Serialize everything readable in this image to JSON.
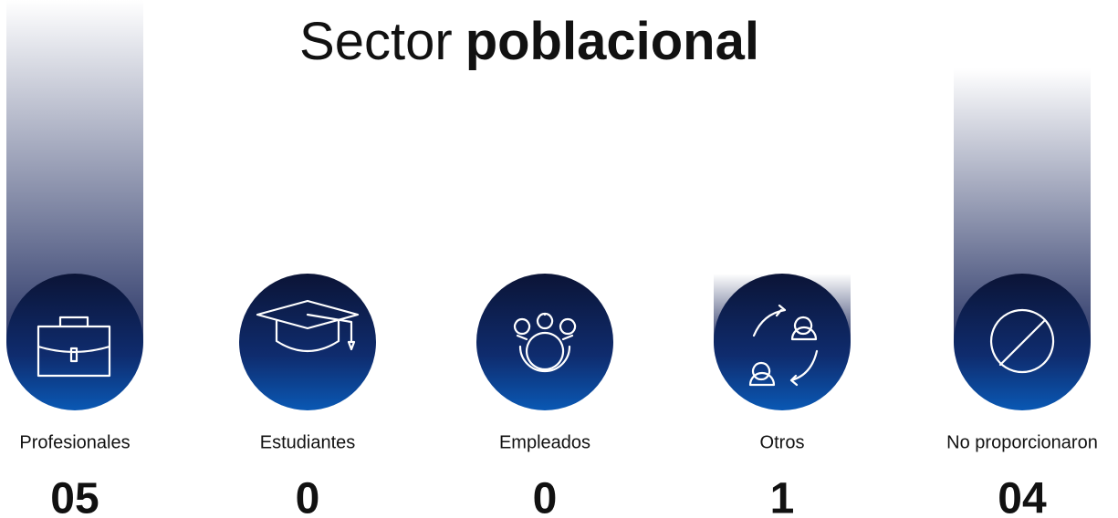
{
  "chart_data": {
    "type": "bar",
    "title": {
      "light": "Sector",
      "bold": "poblacional"
    },
    "categories": [
      "Profesionales",
      "Estudiantes",
      "Empleados",
      "Otros",
      "No proporcionaron"
    ],
    "values": [
      5,
      0,
      0,
      1,
      4
    ],
    "value_labels": [
      "05",
      "0",
      "0",
      "1",
      "04"
    ],
    "ylim": [
      0,
      5
    ]
  }
}
